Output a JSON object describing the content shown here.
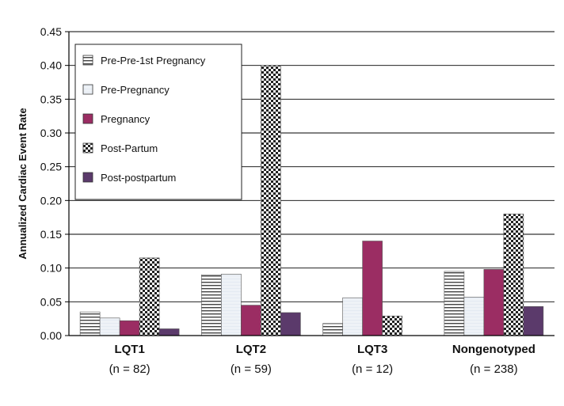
{
  "chart_data": {
    "type": "bar",
    "title": "",
    "xlabel": "",
    "ylabel": "Annualized Cardiac Event Rate",
    "ylim": [
      0,
      0.45
    ],
    "yticks": [
      "0.00",
      "0.05",
      "0.10",
      "0.15",
      "0.20",
      "0.25",
      "0.30",
      "0.35",
      "0.40",
      "0.45"
    ],
    "grid": "horizontal",
    "legend_position": "top-left",
    "categories": [
      "LQT1",
      "LQT2",
      "LQT3",
      "Nongenotyped"
    ],
    "category_subtitles": [
      "(n = 82)",
      "(n = 59)",
      "(n = 12)",
      "(n = 238)"
    ],
    "series": [
      {
        "name": "Pre-Pre-1st Pregnancy",
        "pattern": "horizontal-stripes",
        "color": "#ffffff",
        "values": [
          0.035,
          0.09,
          0.018,
          0.095
        ]
      },
      {
        "name": "Pre-Pregnancy",
        "pattern": "solid",
        "color": "#e6eef6",
        "values": [
          0.026,
          0.091,
          0.056,
          0.057
        ]
      },
      {
        "name": "Pregnancy",
        "pattern": "solid",
        "color": "#9b2d63",
        "values": [
          0.022,
          0.045,
          0.14,
          0.098
        ]
      },
      {
        "name": "Post-Partum",
        "pattern": "checkerboard",
        "color": "#222222",
        "values": [
          0.115,
          0.4,
          0.029,
          0.18
        ]
      },
      {
        "name": "Post-postpartum",
        "pattern": "solid",
        "color": "#5b3a6b",
        "values": [
          0.01,
          0.034,
          null,
          0.043
        ]
      }
    ]
  }
}
